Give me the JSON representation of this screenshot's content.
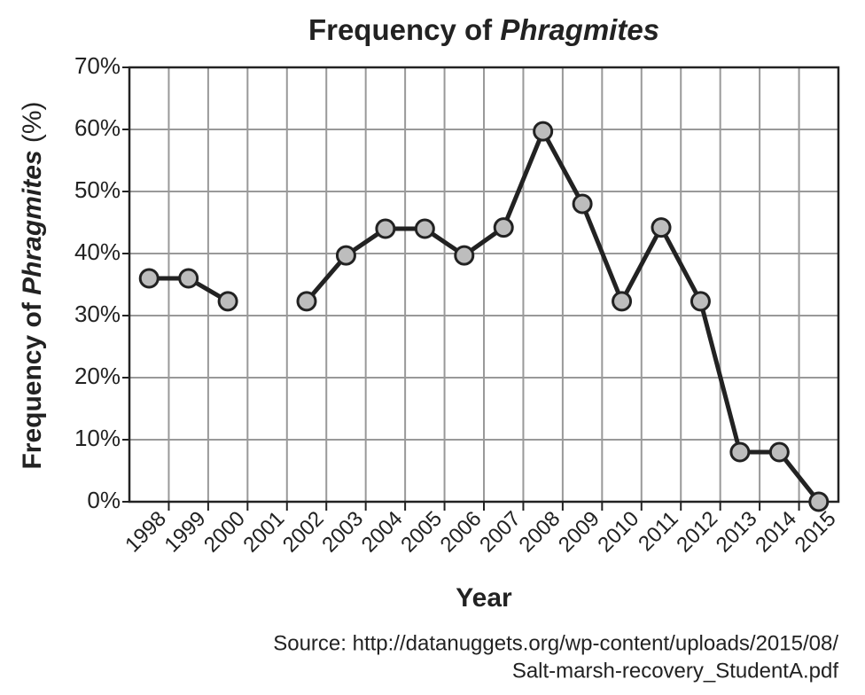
{
  "chart_data": {
    "type": "line",
    "title": [
      "Frequency of",
      "Phragmites"
    ],
    "xlabel": "Year",
    "ylabel": [
      "Frequency of",
      "Phragmites",
      "(%)"
    ],
    "source": [
      "Source: http://datanuggets.org/wp-content/uploads/2015/08/",
      "Salt-marsh-recovery_StudentA.pdf"
    ],
    "categories": [
      "1998",
      "1999",
      "2000",
      "2001",
      "2002",
      "2003",
      "2004",
      "2005",
      "2006",
      "2007",
      "2008",
      "2009",
      "2010",
      "2011",
      "2012",
      "2013",
      "2014",
      "2015"
    ],
    "values": [
      36,
      36,
      32.3,
      null,
      32.3,
      39.7,
      44,
      44,
      39.7,
      44.2,
      59.7,
      48,
      32.3,
      44.2,
      32.3,
      8,
      8,
      0
    ],
    "color": "#222222",
    "marker_color": "#bdbdbd",
    "ylim": [
      0,
      70
    ],
    "yticks": [
      {
        "value": 0,
        "label": "0%"
      },
      {
        "value": 10,
        "label": "10%"
      },
      {
        "value": 20,
        "label": "20%"
      },
      {
        "value": 30,
        "label": "30%"
      },
      {
        "value": 40,
        "label": "40%"
      },
      {
        "value": 50,
        "label": "50%"
      },
      {
        "value": 60,
        "label": "60%"
      },
      {
        "value": 70,
        "label": "70%"
      }
    ],
    "grid": true
  }
}
